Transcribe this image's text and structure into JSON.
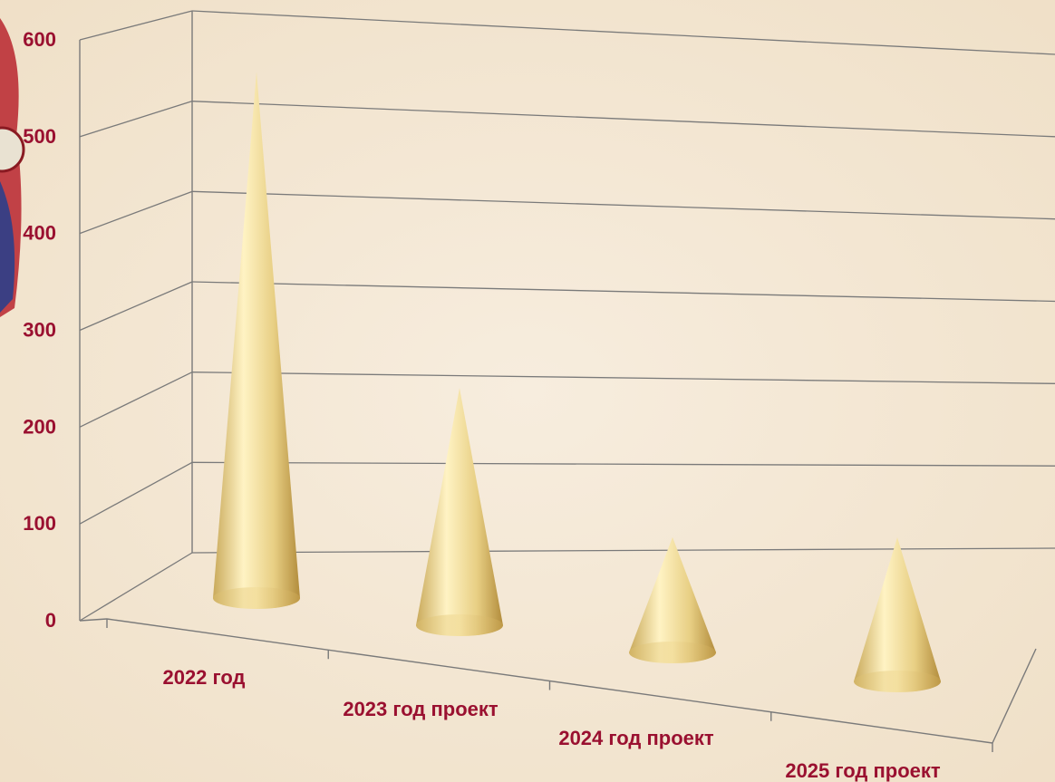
{
  "chart_data": {
    "type": "bar",
    "bar_shape": "cone-3d",
    "categories": [
      "2022 год",
      "2023 год проект",
      "2024 год проект",
      "2025 год проект"
    ],
    "values": [
      548,
      247,
      120,
      150
    ],
    "ylim": [
      0,
      600
    ],
    "yticks": [
      0,
      100,
      200,
      300,
      400,
      500,
      600
    ],
    "grid": true,
    "legend": "none",
    "title": "",
    "xlabel": "",
    "ylabel": ""
  },
  "colors": {
    "background": "#f4e8d6",
    "label_text": "#9a1030",
    "gridline": "#7a7a7a",
    "cone_light": "#fff3c4",
    "cone_mid": "#e8cf84",
    "cone_dark": "#b28c3c"
  }
}
